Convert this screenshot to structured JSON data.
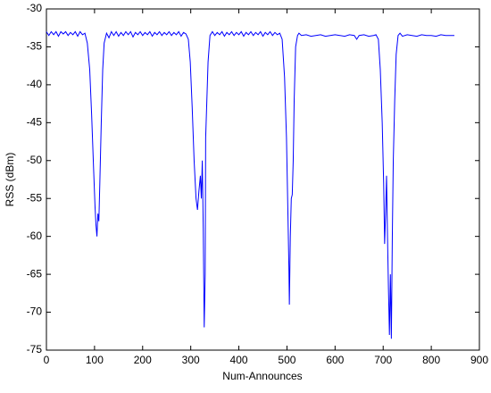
{
  "chart_data": {
    "type": "line",
    "xlabel": "Num-Announces",
    "ylabel": "RSS (dBm)",
    "color": "#0000ff",
    "xlim": [
      0,
      900
    ],
    "ylim": [
      -75,
      -30
    ],
    "xticks": [
      0,
      100,
      200,
      300,
      400,
      500,
      600,
      700,
      800,
      900
    ],
    "yticks": [
      -30,
      -35,
      -40,
      -45,
      -50,
      -55,
      -60,
      -65,
      -70,
      -75
    ],
    "x": [
      0,
      5,
      10,
      15,
      20,
      25,
      30,
      35,
      40,
      45,
      50,
      55,
      60,
      65,
      70,
      75,
      80,
      85,
      90,
      94,
      98,
      101,
      103,
      105,
      107,
      109,
      111,
      114,
      117,
      120,
      125,
      130,
      135,
      140,
      145,
      150,
      155,
      160,
      165,
      170,
      175,
      180,
      185,
      190,
      195,
      200,
      205,
      210,
      215,
      220,
      225,
      230,
      235,
      240,
      245,
      250,
      255,
      260,
      265,
      270,
      275,
      280,
      285,
      290,
      295,
      299,
      303,
      307,
      311,
      314,
      317,
      320,
      322,
      324,
      326,
      328,
      330,
      331,
      333,
      336,
      340,
      345,
      350,
      355,
      360,
      365,
      370,
      375,
      380,
      385,
      390,
      395,
      400,
      405,
      410,
      415,
      420,
      425,
      430,
      435,
      440,
      445,
      450,
      455,
      460,
      465,
      470,
      475,
      480,
      485,
      490,
      495,
      499,
      502,
      504,
      505,
      507,
      509,
      511,
      513,
      515,
      518,
      522,
      525,
      530,
      540,
      550,
      560,
      570,
      580,
      590,
      600,
      610,
      620,
      630,
      640,
      645,
      650,
      660,
      670,
      680,
      685,
      690,
      694,
      698,
      701,
      703,
      705,
      707,
      709,
      711,
      713,
      715,
      717,
      719,
      721,
      724,
      727,
      731,
      735,
      740,
      750,
      760,
      770,
      780,
      790,
      800,
      810,
      820,
      830,
      840,
      848
    ],
    "values": [
      -33.0,
      -33.5,
      -33.0,
      -33.4,
      -33.0,
      -33.6,
      -33.0,
      -33.3,
      -33.0,
      -33.5,
      -33.1,
      -33.4,
      -33.0,
      -33.6,
      -33.0,
      -33.4,
      -33.2,
      -34.5,
      -38,
      -44,
      -51,
      -56,
      -58.5,
      -60,
      -57,
      -58,
      -53,
      -45,
      -38,
      -34.5,
      -33.2,
      -33.8,
      -33.0,
      -33.5,
      -33.0,
      -33.6,
      -33.1,
      -33.5,
      -33.0,
      -33.4,
      -33.0,
      -33.7,
      -33.1,
      -33.4,
      -33.0,
      -33.5,
      -33.1,
      -33.4,
      -33.0,
      -33.6,
      -33.1,
      -33.4,
      -33.0,
      -33.5,
      -33.1,
      -33.4,
      -33.0,
      -33.5,
      -33.1,
      -33.4,
      -33.0,
      -33.6,
      -33.1,
      -33.3,
      -34.0,
      -37,
      -43,
      -50,
      -55,
      -56.5,
      -54,
      -52,
      -55,
      -50,
      -59,
      -72,
      -65,
      -47,
      -43,
      -37,
      -33.5,
      -33.0,
      -33.5,
      -33.1,
      -33.4,
      -33.0,
      -33.6,
      -33.1,
      -33.4,
      -33.0,
      -33.5,
      -33.1,
      -33.4,
      -33.0,
      -33.6,
      -33.1,
      -33.4,
      -33.0,
      -33.5,
      -33.1,
      -33.4,
      -33.0,
      -33.6,
      -33.1,
      -33.4,
      -33.0,
      -33.5,
      -33.1,
      -33.4,
      -33.2,
      -34,
      -39,
      -47,
      -57,
      -64,
      -69,
      -60,
      -55,
      -54.5,
      -50,
      -42,
      -35,
      -33.5,
      -33.2,
      -33.5,
      -33.4,
      -33.6,
      -33.5,
      -33.4,
      -33.6,
      -33.5,
      -33.4,
      -33.5,
      -33.6,
      -33.4,
      -33.5,
      -34.0,
      -33.5,
      -33.4,
      -33.6,
      -33.5,
      -33.4,
      -34,
      -38,
      -45,
      -53,
      -61,
      -57,
      -52,
      -60,
      -67,
      -73,
      -65,
      -73.5,
      -60,
      -50,
      -42,
      -36,
      -33.5,
      -33.2,
      -33.6,
      -33.4,
      -33.5,
      -33.6,
      -33.4,
      -33.5,
      -33.5,
      -33.6,
      -33.4,
      -33.5,
      -33.5,
      -33.5
    ]
  }
}
